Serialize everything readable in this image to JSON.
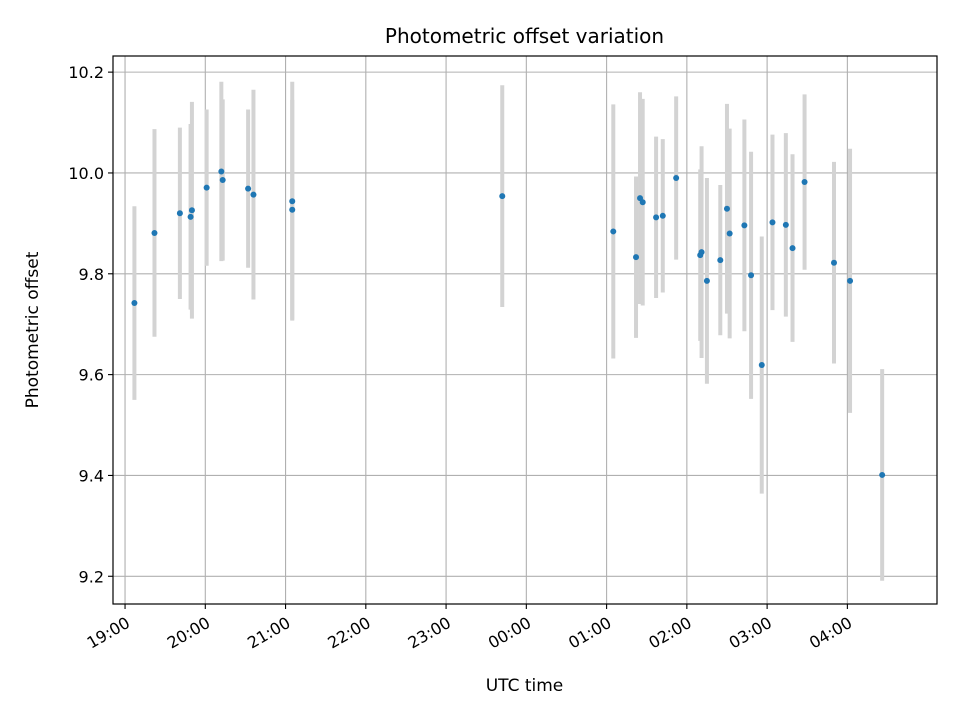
{
  "chart_data": {
    "type": "scatter",
    "title": "Photometric offset variation",
    "xlabel": "UTC time",
    "ylabel": "Photometric offset",
    "xlim": [
      "18:51",
      "05:07"
    ],
    "ylim": [
      9.145,
      10.232
    ],
    "x_ticks": [
      "19:00",
      "20:00",
      "21:00",
      "22:00",
      "23:00",
      "00:00",
      "01:00",
      "02:00",
      "03:00",
      "04:00"
    ],
    "y_ticks": [
      9.2,
      9.4,
      9.6,
      9.8,
      10.0,
      10.2
    ],
    "y_tick_labels": [
      "9.2",
      "9.4",
      "9.6",
      "9.8",
      "10.0",
      "10.2"
    ],
    "grid": true,
    "marker_color": "#1f77b4",
    "errorbar_color": "#d3d3d3",
    "points": [
      {
        "time": "19:07",
        "y": 9.742,
        "err": 0.192
      },
      {
        "time": "19:22",
        "y": 9.881,
        "err": 0.206
      },
      {
        "time": "19:41",
        "y": 9.92,
        "err": 0.17
      },
      {
        "time": "19:49",
        "y": 9.913,
        "err": 0.184
      },
      {
        "time": "19:50",
        "y": 9.926,
        "err": 0.215
      },
      {
        "time": "20:01",
        "y": 9.971,
        "err": 0.155
      },
      {
        "time": "20:12",
        "y": 10.003,
        "err": 0.178
      },
      {
        "time": "20:13",
        "y": 9.986,
        "err": 0.16
      },
      {
        "time": "20:32",
        "y": 9.969,
        "err": 0.157
      },
      {
        "time": "20:36",
        "y": 9.957,
        "err": 0.208
      },
      {
        "time": "21:05",
        "y": 9.944,
        "err": 0.237
      },
      {
        "time": "21:05",
        "y": 9.927,
        "err": 0.218
      },
      {
        "time": "23:42",
        "y": 9.954,
        "err": 0.22
      },
      {
        "time": "01:05",
        "y": 9.884,
        "err": 0.252
      },
      {
        "time": "01:22",
        "y": 9.833,
        "err": 0.16
      },
      {
        "time": "01:25",
        "y": 9.95,
        "err": 0.21
      },
      {
        "time": "01:27",
        "y": 9.942,
        "err": 0.205
      },
      {
        "time": "01:37",
        "y": 9.912,
        "err": 0.16
      },
      {
        "time": "01:42",
        "y": 9.915,
        "err": 0.152
      },
      {
        "time": "01:52",
        "y": 9.99,
        "err": 0.162
      },
      {
        "time": "02:10",
        "y": 9.837,
        "err": 0.17
      },
      {
        "time": "02:11",
        "y": 9.843,
        "err": 0.21
      },
      {
        "time": "02:15",
        "y": 9.786,
        "err": 0.204
      },
      {
        "time": "02:25",
        "y": 9.827,
        "err": 0.149
      },
      {
        "time": "02:30",
        "y": 9.929,
        "err": 0.208
      },
      {
        "time": "02:32",
        "y": 9.88,
        "err": 0.208
      },
      {
        "time": "02:43",
        "y": 9.896,
        "err": 0.21
      },
      {
        "time": "02:48",
        "y": 9.797,
        "err": 0.245
      },
      {
        "time": "02:56",
        "y": 9.619,
        "err": 0.255
      },
      {
        "time": "03:04",
        "y": 9.902,
        "err": 0.174
      },
      {
        "time": "03:14",
        "y": 9.897,
        "err": 0.182
      },
      {
        "time": "03:19",
        "y": 9.851,
        "err": 0.186
      },
      {
        "time": "03:28",
        "y": 9.982,
        "err": 0.174
      },
      {
        "time": "03:50",
        "y": 9.822,
        "err": 0.2
      },
      {
        "time": "04:02",
        "y": 9.786,
        "err": 0.262
      },
      {
        "time": "04:26",
        "y": 9.401,
        "err": 0.21
      }
    ]
  }
}
